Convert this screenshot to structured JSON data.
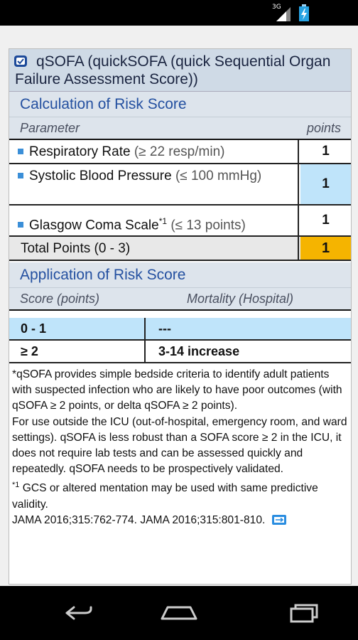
{
  "status_bar": {
    "network_label": "3G",
    "signal_icon": "signal-icon",
    "battery_icon": "battery-charging-icon"
  },
  "header": {
    "app_icon": "calculator-icon",
    "title": "qSOFA (quickSOFA (quick Sequential Organ Failure Assessment Score))"
  },
  "calculation": {
    "section_title": "Calculation of Risk Score",
    "col_parameter": "Parameter",
    "col_points": "points",
    "rows": [
      {
        "label": "Respiratory Rate",
        "criteria": "(≥ 22 resp/min)",
        "points": "1"
      },
      {
        "label": "Systolic Blood Pressure",
        "criteria": "(≤ 100 mmHg)",
        "points": "1"
      },
      {
        "label": "Glasgow Coma Scale",
        "footnote_mark": "*1",
        "criteria": "(≤ 13 points)",
        "points": "1"
      }
    ],
    "total_label": "Total Points (0 - 3)",
    "total_value": "1"
  },
  "application": {
    "section_title": "Application of Risk Score",
    "col_score": "Score (points)",
    "col_mortality": "Mortality (Hospital)",
    "rows": [
      {
        "score": "0 - 1",
        "mortality": "---"
      },
      {
        "score": "≥ 2",
        "mortality": "3-14 increase"
      }
    ]
  },
  "notes": {
    "p1": "*qSOFA provides simple bedside criteria to identify adult patients with suspected infection who are likely to have poor outcomes (with qSOFA ≥ 2 points, or delta qSOFA ≥ 2 points).",
    "p2": "For use outside the ICU (out-of-hospital, emergency room, and ward settings). qSOFA is less robust than a SOFA score ≥ 2 in the ICU, it does not require lab tests and can be assessed quickly and repeatedly. qSOFA needs to be prospectively validated.",
    "footnote_mark": "*1",
    "p3": " GCS or altered mentation may be used with same predictive validity.",
    "reference": "JAMA 2016;315:762-774. JAMA 2016;315:801-810.",
    "link_icon": "external-link-icon"
  },
  "colors": {
    "highlight_blue": "#bfe4fa",
    "highlight_orange": "#f5b400",
    "accent_blue": "#2450a0"
  },
  "nav_bar": {
    "back_icon": "back-icon",
    "home_icon": "home-icon",
    "recents_icon": "recents-icon"
  }
}
